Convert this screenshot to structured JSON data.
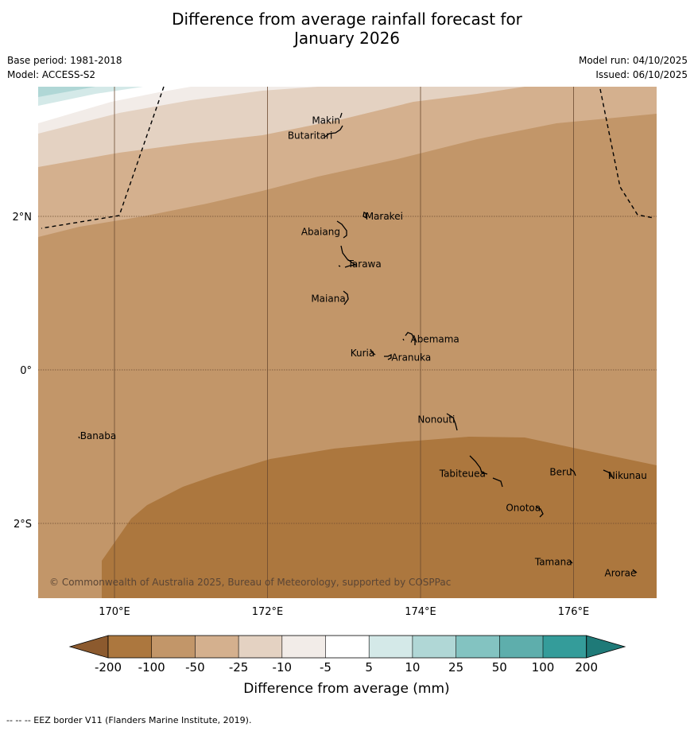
{
  "title": {
    "line1": "Difference from average rainfall forecast for",
    "line2": "January 2026"
  },
  "meta": {
    "base_period": "Base period: 1981-2018",
    "model": "Model: ACCESS-S2",
    "model_run": "Model run: 04/10/2025",
    "issued": "Issued: 06/10/2025"
  },
  "map": {
    "lon_range": [
      169.0,
      177.1
    ],
    "lat_range": [
      -3.0,
      3.5
    ],
    "lon_ticks": [
      {
        "value": 170,
        "label": "170°E"
      },
      {
        "value": 172,
        "label": "172°E"
      },
      {
        "value": 174,
        "label": "174°E"
      },
      {
        "value": 176,
        "label": "176°E"
      }
    ],
    "lat_ticks": [
      {
        "value": 2,
        "label": "2°N"
      },
      {
        "value": 0,
        "label": "0°"
      },
      {
        "value": -2,
        "label": "2°S"
      }
    ],
    "places": [
      {
        "name": "Makin",
        "lon": 172.95,
        "lat": 3.25
      },
      {
        "name": "Butaritari",
        "lon": 172.85,
        "lat": 3.05
      },
      {
        "name": "Marakei",
        "lon": 173.28,
        "lat": 2.0
      },
      {
        "name": "Abaiang",
        "lon": 172.95,
        "lat": 1.8
      },
      {
        "name": "Tarawa",
        "lon": 173.05,
        "lat": 1.38
      },
      {
        "name": "Maiana",
        "lon": 173.02,
        "lat": 0.93
      },
      {
        "name": "Abemama",
        "lon": 173.87,
        "lat": 0.4
      },
      {
        "name": "Kuria",
        "lon": 173.4,
        "lat": 0.22
      },
      {
        "name": "Aranuka",
        "lon": 173.62,
        "lat": 0.16
      },
      {
        "name": "Nonouti",
        "lon": 174.45,
        "lat": -0.65
      },
      {
        "name": "Banaba",
        "lon": 169.55,
        "lat": -0.86
      },
      {
        "name": "Tabiteuea",
        "lon": 174.85,
        "lat": -1.35
      },
      {
        "name": "Beru",
        "lon": 175.98,
        "lat": -1.33
      },
      {
        "name": "Nikunau",
        "lon": 176.45,
        "lat": -1.38
      },
      {
        "name": "Onotoa",
        "lon": 175.57,
        "lat": -1.8
      },
      {
        "name": "Tamana",
        "lon": 175.98,
        "lat": -2.5
      },
      {
        "name": "Arorae",
        "lon": 176.82,
        "lat": -2.65
      }
    ],
    "copyright": "© Commonwealth of Australia 2025, Bureau of Meteorology, supported by COSPPac"
  },
  "colorbar": {
    "label": "Difference from average (mm)",
    "ticks": [
      "-200",
      "-100",
      "-50",
      "-25",
      "-10",
      "-5",
      "5",
      "10",
      "25",
      "50",
      "100",
      "200"
    ],
    "colors": [
      "#8c5a2e",
      "#ac773e",
      "#c29669",
      "#d4b08e",
      "#e4d2c2",
      "#f2ece8",
      "#ffffff",
      "#d4e9e8",
      "#b0d7d6",
      "#83c3c1",
      "#5eaeac",
      "#349c9a",
      "#1f7a78"
    ]
  },
  "footer": "--  --  -- EEZ border V11 (Flanders Marine Institute, 2019)."
}
